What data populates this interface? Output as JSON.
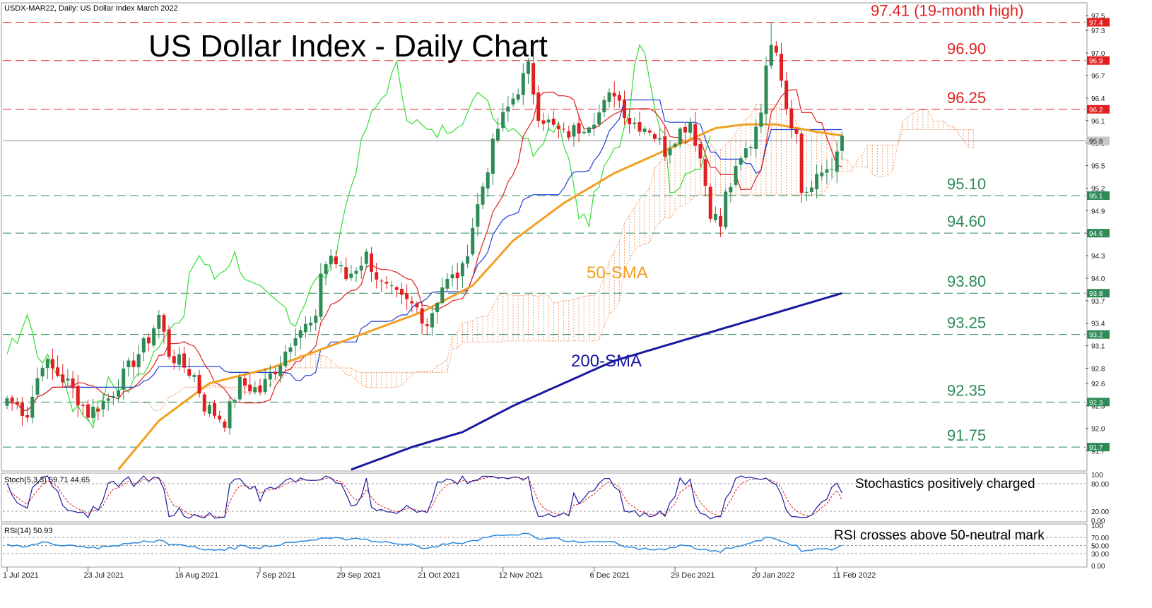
{
  "symbol_header": "USDX-MAR22, Daily:  US Dollar Index March 2022",
  "chart_title": "US Dollar Index - Daily Chart",
  "colors": {
    "bull_candle": "#2e8b57",
    "bear_candle": "#e02020",
    "tenkan": "#e02020",
    "kijun": "#1f3fd6",
    "chikou": "#33dd33",
    "cloud": "#f0a070",
    "sma50": "#f2a020",
    "sma200": "#1a1aa0",
    "resistance": "#e02020",
    "support": "#2e8b57",
    "stoch_main": "#1a1aa0",
    "stoch_signal": "#e02020",
    "rsi": "#2a8ae0"
  },
  "chart_data": {
    "type": "candlestick",
    "title": "US Dollar Index - Daily Chart",
    "ylim": [
      91.45,
      97.65
    ],
    "y_ticks": [
      "97.5",
      "97.3",
      "97.0",
      "96.7",
      "96.4",
      "96.1",
      "95.8",
      "95.5",
      "95.2",
      "94.9",
      "94.6",
      "94.3",
      "94.0",
      "93.7",
      "93.4",
      "93.1",
      "92.8",
      "92.6",
      "92.3",
      "92.0",
      "91.7"
    ],
    "x_ticks": [
      "1 Jul 2021",
      "23 Jul 2021",
      "16 Aug 2021",
      "7 Sep 2021",
      "29 Sep 2021",
      "21 Oct 2021",
      "12 Nov 2021",
      "6 Dec 2021",
      "29 Dec 2021",
      "20 Jan 2022",
      "11 Feb 2022"
    ],
    "x_tick_index": [
      0,
      16,
      34,
      50,
      66,
      82,
      98,
      116,
      132,
      148,
      164
    ],
    "current_price_tag": "95.8",
    "levels": [
      {
        "value": 97.41,
        "label": "97.41 (19-month high)",
        "tag": "97.4",
        "kind": "resistance"
      },
      {
        "value": 96.9,
        "label": "96.90",
        "tag": "96.9",
        "kind": "resistance"
      },
      {
        "value": 96.25,
        "label": "96.25",
        "tag": "96.2",
        "kind": "resistance"
      },
      {
        "value": 95.1,
        "label": "95.10",
        "tag": "95.1",
        "kind": "support"
      },
      {
        "value": 94.6,
        "label": "94.60",
        "tag": "94.6",
        "kind": "support"
      },
      {
        "value": 93.8,
        "label": "93.80",
        "tag": "93.8",
        "kind": "support"
      },
      {
        "value": 93.25,
        "label": "93.25",
        "tag": "93.2",
        "kind": "support"
      },
      {
        "value": 92.35,
        "label": "92.35",
        "tag": "92.3",
        "kind": "support"
      },
      {
        "value": 91.75,
        "label": "91.75",
        "tag": "91.7",
        "kind": "support"
      }
    ],
    "annotations": [
      {
        "text": "50-SMA",
        "color": "#f2a020"
      },
      {
        "text": "200-SMA",
        "color": "#1a1aa0"
      }
    ],
    "close_anchors": [
      [
        0,
        92.4
      ],
      [
        4,
        92.2
      ],
      [
        7,
        92.9
      ],
      [
        12,
        92.6
      ],
      [
        16,
        92.2
      ],
      [
        20,
        92.4
      ],
      [
        24,
        92.8
      ],
      [
        28,
        93.2
      ],
      [
        30,
        93.5
      ],
      [
        32,
        93.0
      ],
      [
        37,
        92.7
      ],
      [
        39,
        92.3
      ],
      [
        43,
        92.1
      ],
      [
        46,
        92.6
      ],
      [
        50,
        92.5
      ],
      [
        54,
        92.9
      ],
      [
        57,
        93.3
      ],
      [
        61,
        93.4
      ],
      [
        62,
        94.1
      ],
      [
        64,
        94.3
      ],
      [
        67,
        94.0
      ],
      [
        71,
        94.3
      ],
      [
        74,
        93.9
      ],
      [
        78,
        93.7
      ],
      [
        81,
        93.6
      ],
      [
        83,
        93.4
      ],
      [
        86,
        93.9
      ],
      [
        90,
        94.1
      ],
      [
        92,
        94.7
      ],
      [
        95,
        95.5
      ],
      [
        97,
        96.0
      ],
      [
        100,
        96.4
      ],
      [
        103,
        96.8
      ],
      [
        105,
        96.2
      ],
      [
        108,
        96.0
      ],
      [
        110,
        95.9
      ],
      [
        113,
        96.0
      ],
      [
        117,
        96.2
      ],
      [
        120,
        96.5
      ],
      [
        123,
        96.1
      ],
      [
        127,
        96.0
      ],
      [
        130,
        95.7
      ],
      [
        132,
        95.9
      ],
      [
        135,
        96.1
      ],
      [
        137,
        95.6
      ],
      [
        139,
        94.9
      ],
      [
        141,
        94.7
      ],
      [
        142,
        95.1
      ],
      [
        144,
        95.4
      ],
      [
        146,
        95.7
      ],
      [
        147,
        95.8
      ],
      [
        149,
        96.3
      ],
      [
        151,
        97.2
      ],
      [
        152,
        97.1
      ],
      [
        154,
        96.3
      ],
      [
        156,
        95.9
      ],
      [
        157,
        95.15
      ],
      [
        159,
        95.2
      ],
      [
        161,
        95.4
      ],
      [
        164,
        95.6
      ],
      [
        165,
        95.9
      ]
    ],
    "sma50_anchors": [
      [
        22,
        91.45
      ],
      [
        30,
        92.1
      ],
      [
        40,
        92.6
      ],
      [
        52,
        92.8
      ],
      [
        62,
        93.05
      ],
      [
        72,
        93.3
      ],
      [
        82,
        93.55
      ],
      [
        92,
        93.9
      ],
      [
        100,
        94.5
      ],
      [
        110,
        95.0
      ],
      [
        120,
        95.4
      ],
      [
        130,
        95.7
      ],
      [
        140,
        96.0
      ],
      [
        146,
        96.05
      ],
      [
        152,
        96.05
      ],
      [
        160,
        95.95
      ],
      [
        165,
        95.9
      ]
    ],
    "sma200_anchors": [
      [
        68,
        91.45
      ],
      [
        80,
        91.75
      ],
      [
        90,
        91.95
      ],
      [
        100,
        92.3
      ],
      [
        110,
        92.6
      ],
      [
        120,
        92.9
      ],
      [
        130,
        93.1
      ],
      [
        140,
        93.3
      ],
      [
        150,
        93.5
      ],
      [
        165,
        93.8
      ]
    ],
    "stochastic": {
      "label": "Stoch(5,3,3) 59.71 44.65",
      "main": 59.71,
      "signal": 44.65,
      "scale": [
        "100",
        "80.00",
        "20.00",
        "0.00"
      ],
      "annotation": "Stochastics positively charged"
    },
    "rsi": {
      "label": "RSI(14) 50.93",
      "value": 50.93,
      "scale": [
        "100",
        "70.00",
        "50.00",
        "30.00",
        "0.00"
      ],
      "annotation": "RSI crosses above 50-neutral mark"
    }
  }
}
